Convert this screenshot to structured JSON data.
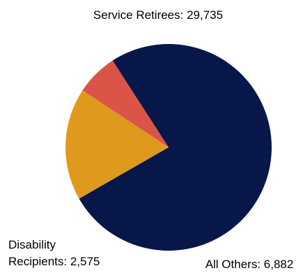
{
  "chart_data": {
    "type": "pie",
    "title": "",
    "slices": [
      {
        "label": "Service Retirees",
        "value": 29735,
        "color": "#08174A",
        "text": "Service Retirees: 29,735"
      },
      {
        "label": "All Others",
        "value": 6882,
        "color": "#DF9A1E",
        "text": "All Others: 6,882"
      },
      {
        "label": "Disability Recipients",
        "value": 2575,
        "color": "#DB5448",
        "text_lines": [
          "Disability",
          "Recipients: 2,575"
        ]
      }
    ],
    "legend": "none"
  }
}
